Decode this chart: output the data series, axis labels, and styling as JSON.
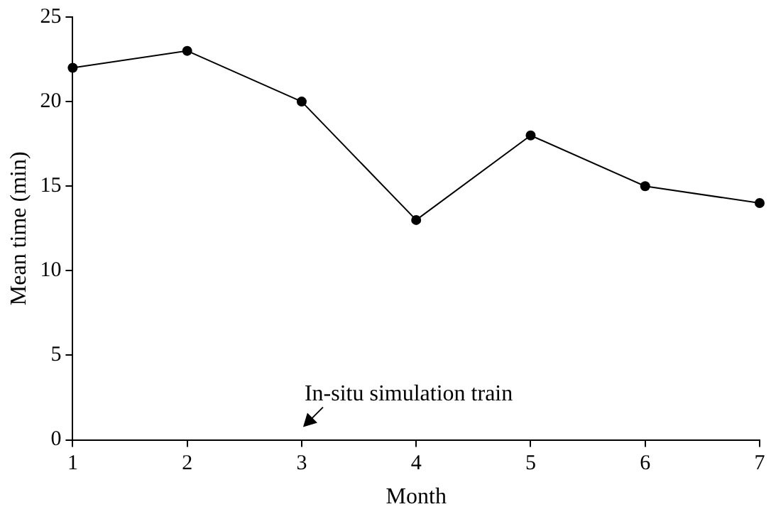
{
  "chart_data": {
    "type": "line",
    "xlabel": "Month",
    "ylabel": "Mean time (min)",
    "x": [
      1,
      2,
      3,
      4,
      5,
      6,
      7
    ],
    "series": [
      {
        "color": "#000000",
        "values": [
          22,
          23,
          20,
          13,
          18,
          15,
          14
        ]
      }
    ],
    "xlim": [
      1,
      7
    ],
    "xticks": [
      1,
      2,
      3,
      4,
      5,
      6,
      7
    ],
    "ylim": [
      0,
      25
    ],
    "yticks": [
      0,
      5,
      10,
      15,
      20,
      25
    ],
    "marker": "circle",
    "line_style": "solid",
    "grid": false,
    "legend": false,
    "annotations": [
      "In-situ simulation train"
    ]
  }
}
